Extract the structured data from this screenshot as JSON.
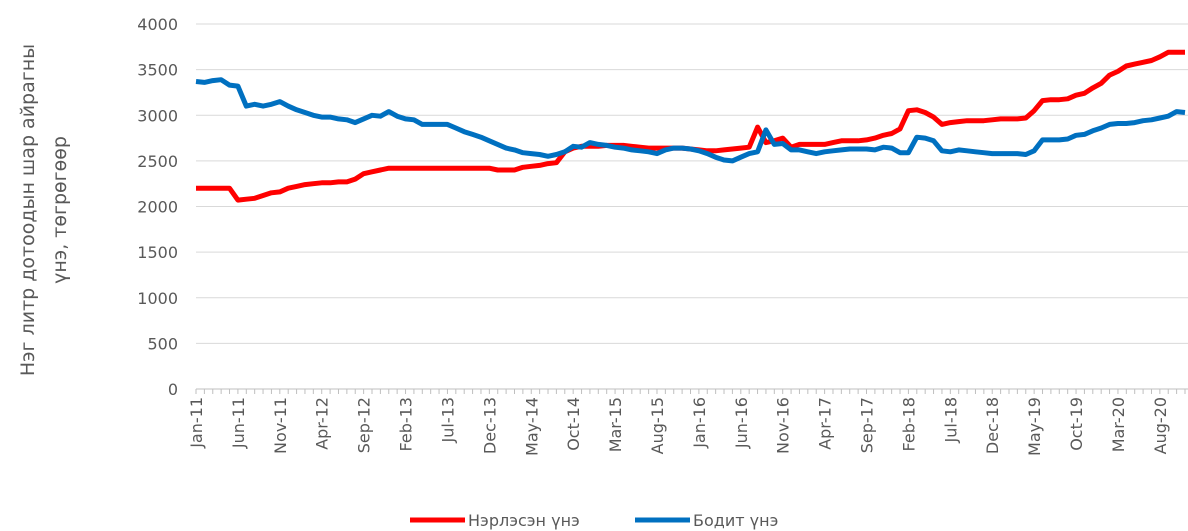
{
  "chart_data": {
    "type": "line",
    "y_label": [
      "Нэг литр дотоодын шар айрагны",
      "үнэ, төгрөгөөр"
    ],
    "categories": [
      "Jan-11",
      null,
      null,
      null,
      null,
      "Jun-11",
      null,
      null,
      null,
      null,
      "Nov-11",
      null,
      null,
      null,
      null,
      "Apr-12",
      null,
      null,
      null,
      null,
      "Sep-12",
      null,
      null,
      null,
      null,
      "Feb-13",
      null,
      null,
      null,
      null,
      "Jul-13",
      null,
      null,
      null,
      null,
      "Dec-13",
      null,
      null,
      null,
      null,
      "May-14",
      null,
      null,
      null,
      null,
      "Oct-14",
      null,
      null,
      null,
      null,
      "Mar-15",
      null,
      null,
      null,
      null,
      "Aug-15",
      null,
      null,
      null,
      null,
      "Jan-16",
      null,
      null,
      null,
      null,
      "Jun-16",
      null,
      null,
      null,
      null,
      "Nov-16",
      null,
      null,
      null,
      null,
      "Apr-17",
      null,
      null,
      null,
      null,
      "Sep-17",
      null,
      null,
      null,
      null,
      "Feb-18",
      null,
      null,
      null,
      null,
      "Jul-18",
      null,
      null,
      null,
      null,
      "Dec-18",
      null,
      null,
      null,
      null,
      "May-19",
      null,
      null,
      null,
      null,
      "Oct-19",
      null,
      null,
      null,
      null,
      "Mar-20",
      null,
      null,
      null,
      null,
      "Aug-20",
      null,
      null,
      null
    ],
    "series": [
      {
        "name": "Нэрлэсэн үнэ",
        "color": "#ff0000",
        "values": [
          2200,
          2200,
          2200,
          2200,
          2200,
          2070,
          2080,
          2090,
          2120,
          2150,
          2160,
          2200,
          2220,
          2240,
          2250,
          2260,
          2260,
          2270,
          2270,
          2300,
          2360,
          2380,
          2400,
          2420,
          2420,
          2420,
          2420,
          2420,
          2420,
          2420,
          2420,
          2420,
          2420,
          2420,
          2420,
          2420,
          2400,
          2400,
          2400,
          2430,
          2440,
          2450,
          2470,
          2480,
          2600,
          2640,
          2660,
          2660,
          2660,
          2670,
          2670,
          2670,
          2660,
          2650,
          2640,
          2640,
          2640,
          2640,
          2640,
          2630,
          2620,
          2610,
          2610,
          2620,
          2630,
          2640,
          2650,
          2870,
          2700,
          2720,
          2750,
          2650,
          2680,
          2680,
          2680,
          2680,
          2700,
          2720,
          2720,
          2720,
          2730,
          2750,
          2780,
          2800,
          2850,
          3050,
          3060,
          3030,
          2980,
          2900,
          2920,
          2930,
          2940,
          2940,
          2940,
          2950,
          2960,
          2960,
          2960,
          2970,
          3050,
          3160,
          3170,
          3170,
          3180,
          3220,
          3240,
          3300,
          3350,
          3440,
          3480,
          3540,
          3560,
          3580,
          3600,
          3640,
          3690,
          3690,
          3690
        ]
      },
      {
        "name": "Бодит үнэ",
        "color": "#0070c0",
        "values": [
          3370,
          3360,
          3380,
          3390,
          3330,
          3320,
          3100,
          3120,
          3100,
          3120,
          3150,
          3100,
          3060,
          3030,
          3000,
          2980,
          2980,
          2960,
          2950,
          2920,
          2960,
          3000,
          2990,
          3040,
          2990,
          2960,
          2950,
          2900,
          2900,
          2900,
          2900,
          2860,
          2820,
          2790,
          2760,
          2720,
          2680,
          2640,
          2620,
          2590,
          2580,
          2570,
          2550,
          2570,
          2600,
          2660,
          2650,
          2700,
          2680,
          2670,
          2650,
          2640,
          2620,
          2610,
          2600,
          2580,
          2620,
          2640,
          2640,
          2630,
          2610,
          2580,
          2540,
          2510,
          2500,
          2540,
          2580,
          2600,
          2840,
          2680,
          2690,
          2620,
          2620,
          2600,
          2580,
          2600,
          2610,
          2620,
          2630,
          2630,
          2630,
          2620,
          2650,
          2640,
          2590,
          2590,
          2760,
          2750,
          2720,
          2610,
          2600,
          2620,
          2610,
          2600,
          2590,
          2580,
          2580,
          2580,
          2580,
          2570,
          2610,
          2730,
          2730,
          2730,
          2740,
          2780,
          2790,
          2830,
          2860,
          2900,
          2910,
          2910,
          2920,
          2940,
          2950,
          2970,
          2990,
          3040,
          3030
        ]
      }
    ],
    "ylim": [
      0,
      4000
    ],
    "yticks": [
      0,
      500,
      1000,
      1500,
      2000,
      2500,
      3000,
      3500,
      4000
    ],
    "grid": true,
    "legend": "bottom"
  }
}
